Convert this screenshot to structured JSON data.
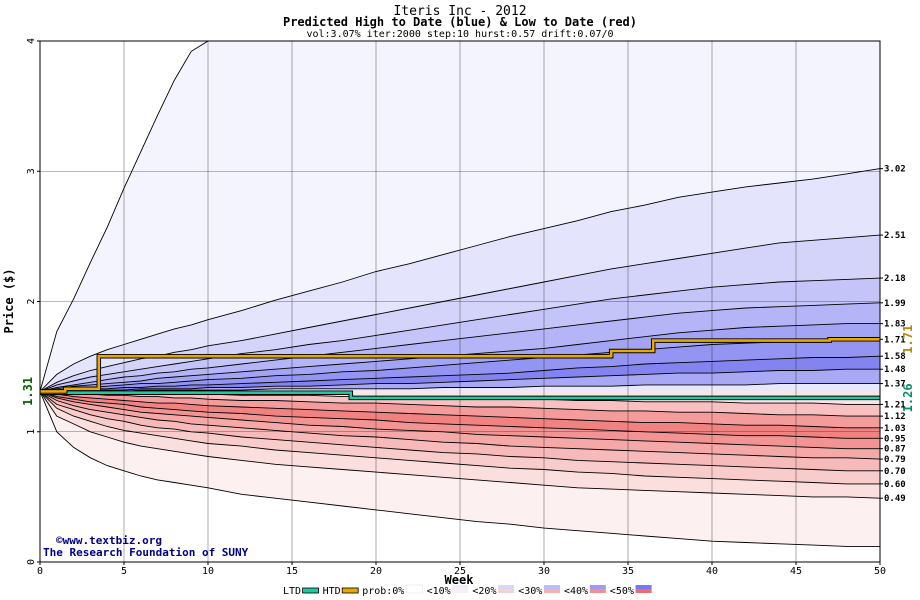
{
  "chart_data": {
    "type": "area",
    "title": "Iteris Inc - 2012",
    "subtitle": "Predicted High to Date (blue) &  Low to Date (red)",
    "params": "vol:3.07% iter:2000 step:10 hurst:0.57 drift:0.07/0",
    "xlabel": "Week",
    "ylabel": "Price ($)",
    "xlim": [
      0,
      50
    ],
    "ylim": [
      0,
      4
    ],
    "xticks": [
      0,
      5,
      10,
      15,
      20,
      25,
      30,
      35,
      40,
      45,
      50
    ],
    "yticks": [
      0,
      1,
      2,
      3,
      4
    ],
    "grid": true,
    "start_value": 1.31,
    "start_label": "1.31",
    "htd_final_label": "1.71",
    "ltd_final_label": "1.26",
    "right_labels": [
      "3.02",
      "2.51",
      "2.18",
      "1.99",
      "1.83",
      "1.71",
      "1.58",
      "1.48",
      "1.37",
      "1.21",
      "1.12",
      "1.03",
      "0.95",
      "0.87",
      "0.79",
      "0.70",
      "0.60",
      "0.49"
    ],
    "x": [
      0,
      1,
      2,
      3,
      4,
      5,
      6,
      7,
      8,
      9,
      10,
      12,
      14,
      16,
      18,
      20,
      22,
      24,
      26,
      28,
      30,
      32,
      34,
      36,
      38,
      40,
      42,
      44,
      46,
      48,
      50
    ],
    "upper_bands": [
      {
        "name": "upper-band-0",
        "values": [
          1.31,
          1.77,
          2.02,
          2.3,
          2.57,
          2.87,
          3.15,
          3.43,
          3.7,
          3.92,
          4.0,
          4.0,
          4.0,
          4.0,
          4.0,
          4.0,
          4.0,
          4.0,
          4.0,
          4.0,
          4.0,
          4.0,
          4.0,
          4.0,
          4.0,
          4.0,
          4.0,
          4.0,
          4.0,
          4.0,
          4.0
        ]
      },
      {
        "name": "upper-band-1",
        "values": [
          1.31,
          1.44,
          1.52,
          1.58,
          1.63,
          1.67,
          1.71,
          1.75,
          1.79,
          1.82,
          1.86,
          1.93,
          2.01,
          2.08,
          2.15,
          2.23,
          2.29,
          2.36,
          2.43,
          2.5,
          2.56,
          2.62,
          2.69,
          2.74,
          2.8,
          2.84,
          2.88,
          2.91,
          2.94,
          2.98,
          3.02
        ]
      },
      {
        "name": "upper-band-2",
        "values": [
          1.31,
          1.38,
          1.43,
          1.47,
          1.5,
          1.53,
          1.56,
          1.58,
          1.61,
          1.63,
          1.66,
          1.7,
          1.75,
          1.8,
          1.85,
          1.9,
          1.95,
          2.0,
          2.05,
          2.1,
          2.15,
          2.2,
          2.25,
          2.29,
          2.33,
          2.37,
          2.41,
          2.45,
          2.47,
          2.49,
          2.51
        ]
      },
      {
        "name": "upper-band-3",
        "values": [
          1.31,
          1.36,
          1.39,
          1.42,
          1.44,
          1.46,
          1.48,
          1.5,
          1.52,
          1.54,
          1.56,
          1.6,
          1.63,
          1.67,
          1.7,
          1.74,
          1.78,
          1.82,
          1.86,
          1.9,
          1.94,
          1.98,
          2.02,
          2.05,
          2.08,
          2.11,
          2.13,
          2.15,
          2.16,
          2.17,
          2.18
        ]
      },
      {
        "name": "upper-band-4",
        "values": [
          1.31,
          1.34,
          1.36,
          1.38,
          1.4,
          1.42,
          1.43,
          1.45,
          1.46,
          1.48,
          1.49,
          1.52,
          1.55,
          1.58,
          1.61,
          1.64,
          1.67,
          1.7,
          1.73,
          1.76,
          1.79,
          1.82,
          1.85,
          1.88,
          1.91,
          1.93,
          1.95,
          1.96,
          1.97,
          1.98,
          1.99
        ]
      },
      {
        "name": "upper-band-5",
        "values": [
          1.31,
          1.33,
          1.35,
          1.36,
          1.37,
          1.38,
          1.39,
          1.41,
          1.42,
          1.43,
          1.44,
          1.46,
          1.48,
          1.5,
          1.52,
          1.54,
          1.56,
          1.58,
          1.6,
          1.62,
          1.64,
          1.67,
          1.7,
          1.73,
          1.76,
          1.78,
          1.8,
          1.81,
          1.82,
          1.83,
          1.83
        ]
      },
      {
        "name": "upper-band-6",
        "values": [
          1.31,
          1.32,
          1.33,
          1.34,
          1.35,
          1.36,
          1.37,
          1.37,
          1.38,
          1.39,
          1.4,
          1.41,
          1.43,
          1.44,
          1.46,
          1.47,
          1.49,
          1.51,
          1.53,
          1.55,
          1.57,
          1.59,
          1.61,
          1.63,
          1.65,
          1.67,
          1.68,
          1.69,
          1.7,
          1.7,
          1.71
        ]
      },
      {
        "name": "upper-band-7",
        "values": [
          1.31,
          1.32,
          1.32,
          1.33,
          1.33,
          1.34,
          1.34,
          1.35,
          1.35,
          1.36,
          1.36,
          1.37,
          1.38,
          1.39,
          1.4,
          1.41,
          1.42,
          1.43,
          1.44,
          1.45,
          1.47,
          1.49,
          1.5,
          1.52,
          1.53,
          1.54,
          1.55,
          1.56,
          1.57,
          1.57,
          1.58
        ]
      },
      {
        "name": "upper-band-8",
        "values": [
          1.31,
          1.31,
          1.32,
          1.32,
          1.32,
          1.32,
          1.33,
          1.33,
          1.33,
          1.33,
          1.34,
          1.34,
          1.35,
          1.35,
          1.36,
          1.37,
          1.37,
          1.38,
          1.39,
          1.4,
          1.41,
          1.42,
          1.43,
          1.44,
          1.45,
          1.45,
          1.46,
          1.47,
          1.47,
          1.48,
          1.48
        ]
      },
      {
        "name": "upper-band-9",
        "values": [
          1.31,
          1.31,
          1.31,
          1.31,
          1.31,
          1.31,
          1.32,
          1.32,
          1.32,
          1.32,
          1.32,
          1.32,
          1.33,
          1.33,
          1.33,
          1.33,
          1.33,
          1.34,
          1.34,
          1.34,
          1.35,
          1.35,
          1.35,
          1.36,
          1.36,
          1.36,
          1.36,
          1.37,
          1.37,
          1.37,
          1.37
        ]
      }
    ],
    "lower_bands": [
      {
        "name": "lower-band-0",
        "values": [
          1.31,
          1.0,
          0.88,
          0.8,
          0.74,
          0.7,
          0.66,
          0.63,
          0.61,
          0.59,
          0.57,
          0.52,
          0.49,
          0.46,
          0.43,
          0.4,
          0.37,
          0.34,
          0.31,
          0.29,
          0.26,
          0.24,
          0.22,
          0.2,
          0.18,
          0.16,
          0.15,
          0.14,
          0.13,
          0.12,
          0.12
        ]
      },
      {
        "name": "lower-band-1",
        "values": [
          1.31,
          1.12,
          1.06,
          1.0,
          0.96,
          0.92,
          0.89,
          0.87,
          0.85,
          0.83,
          0.81,
          0.78,
          0.75,
          0.73,
          0.71,
          0.69,
          0.67,
          0.65,
          0.63,
          0.61,
          0.59,
          0.57,
          0.56,
          0.55,
          0.54,
          0.53,
          0.52,
          0.51,
          0.5,
          0.5,
          0.49
        ]
      },
      {
        "name": "lower-band-2",
        "values": [
          1.31,
          1.18,
          1.12,
          1.08,
          1.04,
          1.01,
          0.99,
          0.97,
          0.95,
          0.93,
          0.91,
          0.89,
          0.86,
          0.84,
          0.82,
          0.8,
          0.78,
          0.76,
          0.74,
          0.72,
          0.71,
          0.69,
          0.68,
          0.66,
          0.65,
          0.64,
          0.63,
          0.62,
          0.61,
          0.6,
          0.6
        ]
      },
      {
        "name": "lower-band-3",
        "values": [
          1.31,
          1.21,
          1.17,
          1.13,
          1.1,
          1.08,
          1.05,
          1.03,
          1.02,
          1.0,
          0.99,
          0.96,
          0.94,
          0.92,
          0.9,
          0.88,
          0.86,
          0.84,
          0.83,
          0.81,
          0.8,
          0.78,
          0.77,
          0.76,
          0.75,
          0.74,
          0.73,
          0.72,
          0.71,
          0.7,
          0.7
        ]
      },
      {
        "name": "lower-band-4",
        "values": [
          1.31,
          1.24,
          1.2,
          1.17,
          1.15,
          1.13,
          1.11,
          1.09,
          1.08,
          1.06,
          1.05,
          1.03,
          1.01,
          0.99,
          0.97,
          0.96,
          0.94,
          0.92,
          0.91,
          0.89,
          0.88,
          0.87,
          0.86,
          0.85,
          0.84,
          0.83,
          0.82,
          0.81,
          0.8,
          0.8,
          0.79
        ]
      },
      {
        "name": "lower-band-5",
        "values": [
          1.31,
          1.26,
          1.23,
          1.21,
          1.19,
          1.17,
          1.15,
          1.14,
          1.13,
          1.12,
          1.11,
          1.09,
          1.07,
          1.05,
          1.04,
          1.02,
          1.01,
          1.0,
          0.98,
          0.97,
          0.96,
          0.95,
          0.94,
          0.93,
          0.92,
          0.91,
          0.9,
          0.89,
          0.88,
          0.87,
          0.87
        ]
      },
      {
        "name": "lower-band-6",
        "values": [
          1.31,
          1.27,
          1.25,
          1.23,
          1.22,
          1.21,
          1.19,
          1.18,
          1.17,
          1.16,
          1.15,
          1.14,
          1.12,
          1.11,
          1.1,
          1.09,
          1.07,
          1.06,
          1.05,
          1.04,
          1.03,
          1.02,
          1.01,
          1.0,
          0.99,
          0.98,
          0.97,
          0.97,
          0.96,
          0.95,
          0.95
        ]
      },
      {
        "name": "lower-band-7",
        "values": [
          1.31,
          1.29,
          1.27,
          1.26,
          1.25,
          1.24,
          1.23,
          1.22,
          1.22,
          1.21,
          1.2,
          1.19,
          1.18,
          1.17,
          1.16,
          1.15,
          1.14,
          1.13,
          1.12,
          1.11,
          1.1,
          1.09,
          1.08,
          1.07,
          1.07,
          1.06,
          1.05,
          1.05,
          1.04,
          1.03,
          1.03
        ]
      },
      {
        "name": "lower-band-8",
        "values": [
          1.31,
          1.3,
          1.29,
          1.29,
          1.28,
          1.28,
          1.27,
          1.27,
          1.26,
          1.26,
          1.25,
          1.24,
          1.24,
          1.23,
          1.22,
          1.22,
          1.21,
          1.2,
          1.19,
          1.19,
          1.18,
          1.17,
          1.16,
          1.16,
          1.15,
          1.15,
          1.14,
          1.13,
          1.13,
          1.12,
          1.12
        ]
      },
      {
        "name": "lower-band-9",
        "values": [
          1.31,
          1.31,
          1.3,
          1.3,
          1.3,
          1.3,
          1.3,
          1.29,
          1.29,
          1.29,
          1.29,
          1.28,
          1.28,
          1.28,
          1.27,
          1.27,
          1.26,
          1.26,
          1.25,
          1.25,
          1.25,
          1.24,
          1.24,
          1.23,
          1.23,
          1.23,
          1.22,
          1.22,
          1.22,
          1.21,
          1.21
        ]
      }
    ],
    "fill_colors_upper": [
      "#f4f4fe",
      "#e4e4fc",
      "#d4d4fa",
      "#c4c4f8",
      "#b4b4f6",
      "#a4a4f4",
      "#9494f2",
      "#8484f0",
      "#a8a8f4",
      "#e8e8fc"
    ],
    "fill_colors_lower": [
      "#fdf0f0",
      "#fbdede",
      "#f9cccc",
      "#f7baba",
      "#f5a8a8",
      "#f39494",
      "#f18282",
      "#f49c9c",
      "#f8c0c0",
      "#fce4e4"
    ],
    "htd_series": {
      "name": "HTD",
      "color": "#e8a800",
      "x": [
        0,
        1.5,
        1.5,
        3.5,
        3.5,
        34,
        34,
        36.5,
        36.5,
        47,
        47,
        50
      ],
      "y": [
        1.31,
        1.31,
        1.33,
        1.33,
        1.58,
        1.58,
        1.62,
        1.62,
        1.7,
        1.7,
        1.71,
        1.71
      ]
    },
    "ltd_series": {
      "name": "LTD",
      "color": "#20c8a0",
      "x": [
        0,
        18.5,
        18.5,
        50
      ],
      "y": [
        1.3,
        1.3,
        1.26,
        1.26
      ]
    },
    "colors": {
      "band_line": "#000000",
      "grid": "#000000",
      "credit": "#000080",
      "htd_label": "#b8860b",
      "ltd_label": "#0a8a6a"
    }
  },
  "credit": {
    "line1": "www.textbiz.org",
    "line2": "The Research Foundation of SUNY"
  },
  "legend": {
    "items": [
      {
        "label": "LTD",
        "swatch": "#20c8a0",
        "kind": "line"
      },
      {
        "label": "HTD",
        "swatch": "#e8a800",
        "kind": "line"
      },
      {
        "label": "prob:0%",
        "swatch": "#ffffff",
        "kind": "box"
      },
      {
        "label": "<10%",
        "swatch": "#fdeeee",
        "swatch2": "#eeeefd",
        "kind": "box"
      },
      {
        "label": "<20%",
        "swatch": "#f9d0d0",
        "swatch2": "#d8d8fa",
        "kind": "box"
      },
      {
        "label": "<30%",
        "swatch": "#f5b0b0",
        "swatch2": "#bcbcf6",
        "kind": "box"
      },
      {
        "label": "<40%",
        "swatch": "#f29090",
        "swatch2": "#9c9cf2",
        "kind": "box"
      },
      {
        "label": "<50%",
        "swatch": "#ef6c6c",
        "swatch2": "#7878ee",
        "kind": "box"
      }
    ]
  }
}
